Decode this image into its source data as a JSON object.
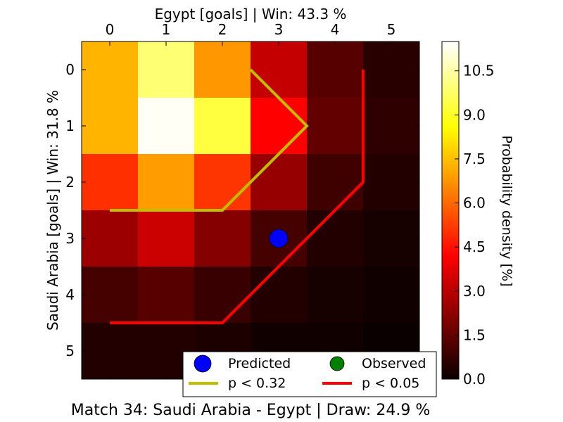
{
  "chart_data": {
    "type": "heatmap",
    "title": "Match 34: Saudi Arabia - Egypt | Draw: 24.9 %",
    "xlabel": "Egypt [goals] | Win: 43.3 %",
    "ylabel": "Saudi Arabia [goals] | Win: 31.8 %",
    "x_ticks": [
      "0",
      "1",
      "2",
      "3",
      "4",
      "5"
    ],
    "y_ticks": [
      "0",
      "1",
      "2",
      "3",
      "4",
      "5"
    ],
    "x_range": [
      -0.5,
      5.5
    ],
    "y_range": [
      -0.5,
      5.5
    ],
    "values": [
      [
        7.3,
        9.9,
        6.8,
        3.2,
        1.3,
        0.5
      ],
      [
        7.3,
        11.4,
        9.3,
        4.2,
        1.5,
        0.6
      ],
      [
        5.0,
        6.9,
        5.1,
        2.4,
        0.9,
        0.4
      ],
      [
        2.5,
        3.3,
        2.1,
        1.0,
        0.4,
        0.2
      ],
      [
        1.0,
        1.3,
        0.8,
        0.4,
        0.2,
        0.1
      ],
      [
        0.4,
        0.4,
        0.3,
        0.1,
        0.1,
        0.0
      ]
    ],
    "colorbar": {
      "label": "Probability density [%]",
      "range": [
        0.0,
        11.5
      ],
      "ticks": [
        "0.0",
        "1.5",
        "3.0",
        "4.5",
        "6.0",
        "7.5",
        "9.0",
        "10.5"
      ],
      "colormap": "hot"
    },
    "predicted": {
      "label": "Predicted",
      "x": 3,
      "y": 3,
      "color": "#0000ff"
    },
    "observed": {
      "label": "Observed",
      "color": "#008000"
    },
    "contours": [
      {
        "label": "p < 0.32",
        "color": "#bfbf00",
        "points": [
          [
            2.5,
            0
          ],
          [
            3.5,
            1
          ],
          [
            2.5,
            2
          ],
          [
            2,
            2.5
          ],
          [
            0,
            2.5
          ]
        ]
      },
      {
        "label": "p < 0.05",
        "color": "#ff0000",
        "points": [
          [
            4.5,
            0
          ],
          [
            4.5,
            2
          ],
          [
            2,
            4.5
          ],
          [
            0,
            4.5
          ]
        ]
      }
    ],
    "legend_placement": "lower-right",
    "grid": false
  }
}
